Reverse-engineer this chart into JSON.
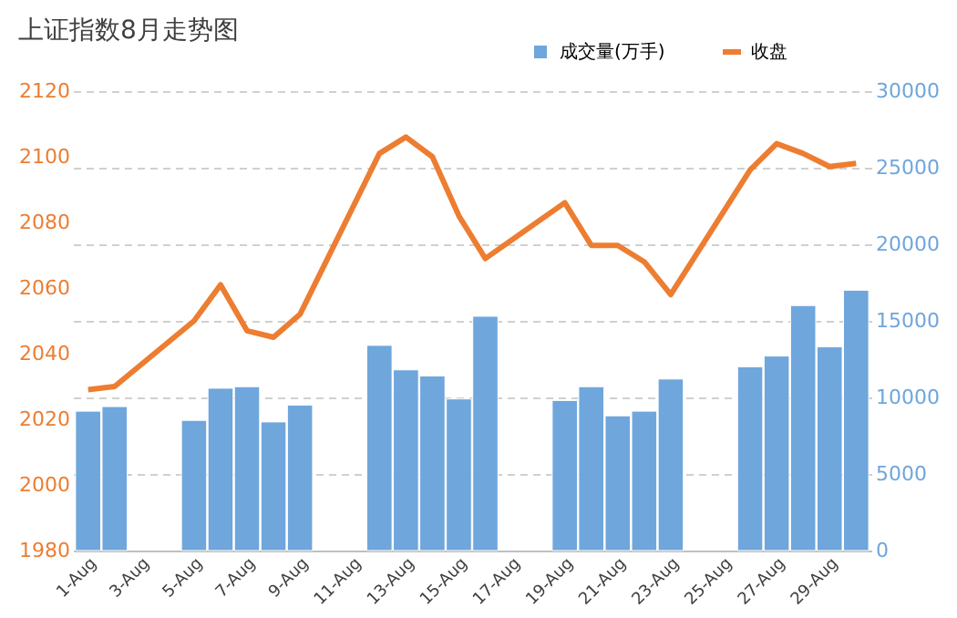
{
  "chart_data": {
    "type": "bar",
    "title": "上证指数8月走势图",
    "categories": [
      "1-Aug",
      null,
      "3-Aug",
      null,
      "5-Aug",
      null,
      "7-Aug",
      null,
      "9-Aug",
      null,
      "11-Aug",
      null,
      "13-Aug",
      null,
      "15-Aug",
      null,
      "17-Aug",
      null,
      "19-Aug",
      null,
      "21-Aug",
      null,
      "23-Aug",
      null,
      "25-Aug",
      null,
      "27-Aug",
      null,
      "29-Aug",
      null
    ],
    "series": [
      {
        "name": "成交量(万手)",
        "axis": "y2",
        "color": "#6fa6dc",
        "values": [
          9100,
          9400,
          null,
          null,
          8500,
          10600,
          10700,
          8400,
          9500,
          null,
          null,
          13400,
          11800,
          11400,
          9900,
          15300,
          null,
          null,
          9800,
          10700,
          8800,
          9100,
          11200,
          null,
          null,
          12000,
          12700,
          16000,
          13300,
          17000
        ]
      },
      {
        "name": "收盘",
        "type": "line",
        "color": "#ed7d31",
        "values": [
          2029,
          2030,
          null,
          null,
          2050,
          2061,
          2047,
          2045,
          2052,
          null,
          null,
          2101,
          2106,
          2100,
          2082,
          2069,
          null,
          null,
          2086,
          2073,
          2073,
          2068,
          2058,
          null,
          null,
          2096,
          2104,
          2101,
          2097,
          2098
        ]
      }
    ],
    "ylim": [
      1980,
      2120
    ],
    "yticks": [
      1980,
      2000,
      2020,
      2040,
      2060,
      2080,
      2100,
      2120
    ],
    "y2lim": [
      0,
      30000
    ],
    "y2ticks": [
      0,
      5000,
      10000,
      15000,
      20000,
      25000,
      30000
    ],
    "grid": "y",
    "legend": "top",
    "line_style": "solid",
    "marker": "none"
  }
}
